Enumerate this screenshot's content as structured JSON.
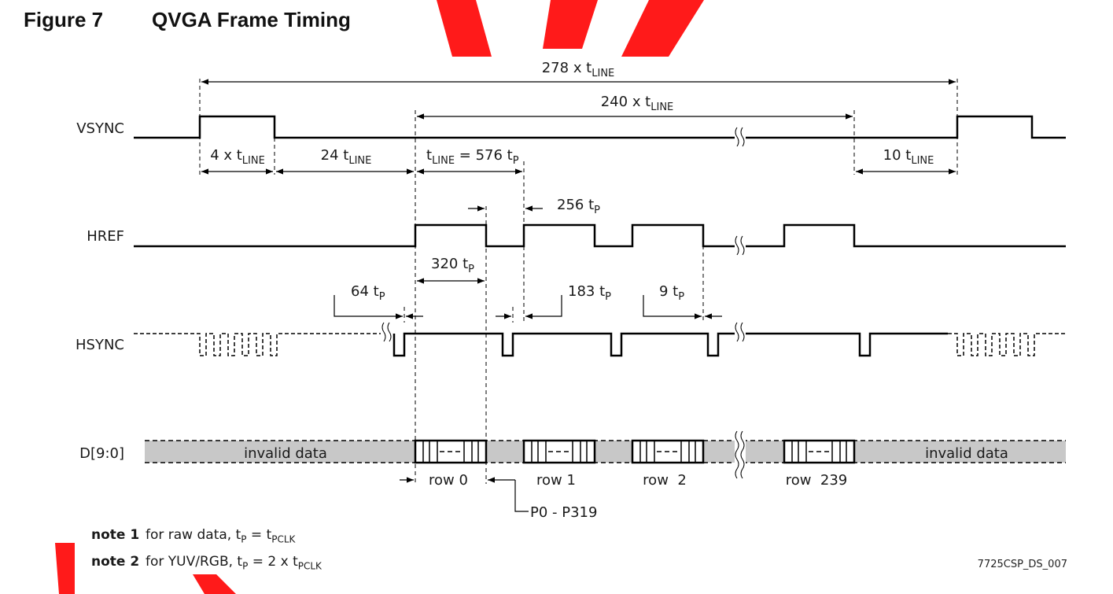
{
  "figure": {
    "number": "Figure 7",
    "title": "QVGA Frame Timing"
  },
  "signals": {
    "vsync": "VSYNC",
    "href": "HREF",
    "hsync": "HSYNC",
    "data": "D[9:0]"
  },
  "timing": {
    "total_lines": {
      "value": "278 x t",
      "sub": "LINE"
    },
    "active_lines": {
      "value": "240 x t",
      "sub": "LINE"
    },
    "vsync_pulse": {
      "value": "4 x t",
      "sub": "LINE"
    },
    "back_porch": {
      "value": "24 t",
      "sub": "LINE"
    },
    "line_time": {
      "pre": "t",
      "sub1": "LINE",
      "mid": " = 576 t",
      "sub2": "P"
    },
    "front_porch": {
      "value": "10 t",
      "sub": "LINE"
    },
    "href_low": {
      "value": "256 t",
      "sub": "P"
    },
    "href_high": {
      "value": "320 t",
      "sub": "P"
    },
    "hsync_pulse": {
      "value": "64 t",
      "sub": "P"
    },
    "hsync_back": {
      "value": "183 t",
      "sub": "P"
    },
    "hsync_front": {
      "value": "9 t",
      "sub": "P"
    }
  },
  "data_bus": {
    "invalid_left": "invalid data",
    "invalid_right": "invalid data",
    "rows": [
      "row 0",
      "row 1",
      "row  2",
      "row  239"
    ],
    "pixels": "P0 - P319"
  },
  "notes": [
    {
      "key": "note 1",
      "pre": "for raw data, t",
      "s1": "P",
      "mid": " = t",
      "s2": "PCLK"
    },
    {
      "key": "note 2",
      "pre": "for YUV/RGB, t",
      "s1": "P",
      "mid": " = 2 x t",
      "s2": "PCLK"
    }
  ],
  "doc_id": "7725CSP_DS_007",
  "colors": {
    "line": "#000000",
    "bus_fill": "#c8c8c8",
    "watermark": "#ff1a1a"
  }
}
